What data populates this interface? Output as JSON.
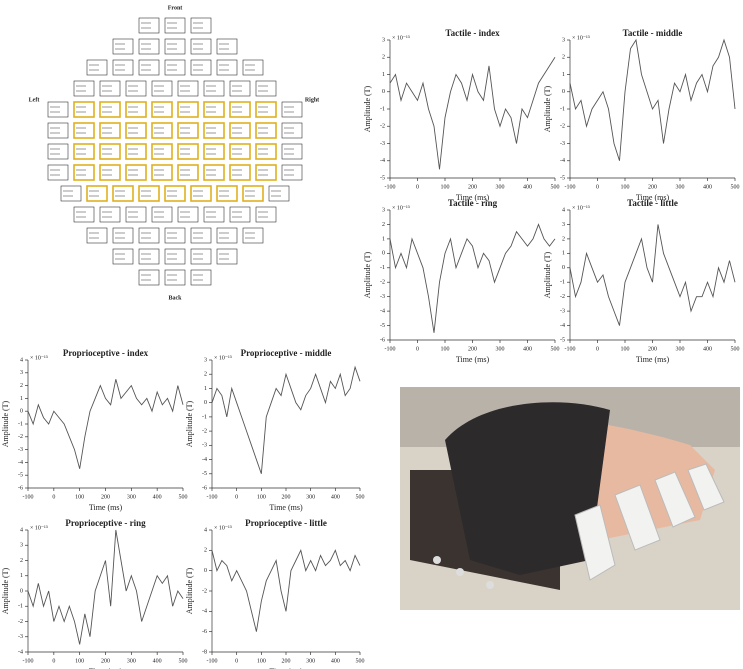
{
  "sensor_map": {
    "front": "Front",
    "left": "Left",
    "right": "Right",
    "back": "Back"
  },
  "chart_data": [
    {
      "type": "line",
      "title": "Tactile - index",
      "x_label": "Time (ms)",
      "y_label": "Amplitude (T)",
      "y_scale_label": "× 10⁻¹³",
      "color": "#555555",
      "x": [
        -100,
        -80,
        -60,
        -40,
        -20,
        0,
        20,
        40,
        60,
        80,
        100,
        120,
        140,
        160,
        180,
        200,
        220,
        240,
        260,
        280,
        300,
        320,
        340,
        360,
        380,
        400,
        420,
        440,
        460,
        480,
        500
      ],
      "values": [
        0.5,
        1,
        -0.5,
        0.5,
        0,
        -0.5,
        0.5,
        -1,
        -2,
        -4.5,
        -1.5,
        0,
        1,
        0.5,
        -0.5,
        1,
        0,
        -0.5,
        1.5,
        -1,
        -2,
        -1,
        -1.5,
        -3,
        -1,
        -1.5,
        -0.5,
        0.5,
        1,
        1.5,
        2
      ],
      "xlim": [
        -100,
        500
      ],
      "xticks": [
        -100,
        0,
        100,
        200,
        300,
        400,
        500
      ],
      "ylim": [
        -5,
        3
      ],
      "yticks": [
        -5,
        -4,
        -3,
        -2,
        -1,
        0,
        1,
        2,
        3
      ]
    },
    {
      "type": "line",
      "title": "Tactile - middle",
      "x_label": "Time (ms)",
      "y_label": "Amplitude (T)",
      "y_scale_label": "× 10⁻¹³",
      "color": "#555555",
      "x": [
        -100,
        -80,
        -60,
        -40,
        -20,
        0,
        20,
        40,
        60,
        80,
        100,
        120,
        140,
        160,
        180,
        200,
        220,
        240,
        260,
        280,
        300,
        320,
        340,
        360,
        380,
        400,
        420,
        440,
        460,
        480,
        500
      ],
      "values": [
        0.5,
        -1,
        -0.5,
        -2,
        -1,
        -0.5,
        0,
        -1,
        -3,
        -4,
        0,
        2.5,
        3,
        1,
        0,
        -1,
        -0.5,
        -3,
        -1,
        0.5,
        0,
        1,
        -0.5,
        0.5,
        1,
        0,
        1.5,
        2,
        3,
        2,
        -1
      ],
      "xlim": [
        -100,
        500
      ],
      "xticks": [
        -100,
        0,
        100,
        200,
        300,
        400,
        500
      ],
      "ylim": [
        -5,
        3
      ],
      "yticks": [
        -5,
        -4,
        -3,
        -2,
        -1,
        0,
        1,
        2,
        3
      ]
    },
    {
      "type": "line",
      "title": "Tactile - ring",
      "x_label": "Time (ms)",
      "y_label": "Amplitude (T)",
      "y_scale_label": "× 10⁻¹³",
      "color": "#555555",
      "x": [
        -100,
        -80,
        -60,
        -40,
        -20,
        0,
        20,
        40,
        60,
        80,
        100,
        120,
        140,
        160,
        180,
        200,
        220,
        240,
        260,
        280,
        300,
        320,
        340,
        360,
        380,
        400,
        420,
        440,
        460,
        480,
        500
      ],
      "values": [
        1,
        -1,
        0,
        -1,
        1,
        0,
        -1,
        -3,
        -5.5,
        -2,
        0,
        1,
        -1,
        0,
        1,
        0.5,
        -1,
        0,
        -0.5,
        -2,
        -1,
        0,
        0.5,
        1.5,
        1,
        0.5,
        1,
        2,
        1,
        0.5,
        1
      ],
      "xlim": [
        -100,
        500
      ],
      "xticks": [
        -100,
        0,
        100,
        200,
        300,
        400,
        500
      ],
      "ylim": [
        -6,
        3
      ],
      "yticks": [
        -6,
        -5,
        -4,
        -3,
        -2,
        -1,
        0,
        1,
        2,
        3
      ]
    },
    {
      "type": "line",
      "title": "Tactile - little",
      "x_label": "Time (ms)",
      "y_label": "Amplitude (T)",
      "y_scale_label": "× 10⁻¹³",
      "color": "#555555",
      "x": [
        -100,
        -80,
        -60,
        -40,
        -20,
        0,
        20,
        40,
        60,
        80,
        100,
        120,
        140,
        160,
        180,
        200,
        220,
        240,
        260,
        280,
        300,
        320,
        340,
        360,
        380,
        400,
        420,
        440,
        460,
        480,
        500
      ],
      "values": [
        0,
        -2,
        -1,
        1,
        0,
        -1,
        -0.5,
        -2,
        -3,
        -4,
        -1,
        0,
        1,
        2,
        0,
        -1,
        3,
        1,
        0,
        -1,
        -2,
        -1,
        -3,
        -2,
        -2,
        -1,
        -2,
        0,
        -1,
        0.5,
        -1
      ],
      "xlim": [
        -100,
        500
      ],
      "xticks": [
        -100,
        0,
        100,
        200,
        300,
        400,
        500
      ],
      "ylim": [
        -5,
        4
      ],
      "yticks": [
        -5,
        -4,
        -3,
        -2,
        -1,
        0,
        1,
        2,
        3,
        4
      ]
    },
    {
      "type": "line",
      "title": "Proprioceptive - index",
      "x_label": "Time (ms)",
      "y_label": "Amplitude (T)",
      "y_scale_label": "× 10⁻¹³",
      "color": "#555555",
      "x": [
        -100,
        -80,
        -60,
        -40,
        -20,
        0,
        20,
        40,
        60,
        80,
        100,
        120,
        140,
        160,
        180,
        200,
        220,
        240,
        260,
        280,
        300,
        320,
        340,
        360,
        380,
        400,
        420,
        440,
        460,
        480,
        500
      ],
      "values": [
        0,
        -1,
        0.5,
        -0.5,
        -1,
        0,
        -0.5,
        -1,
        -2,
        -3,
        -4.5,
        -2,
        0,
        1,
        2,
        1,
        0.5,
        2.5,
        1,
        1.5,
        2,
        1,
        0.5,
        1,
        0,
        1.5,
        0.5,
        1,
        0,
        2,
        0.5
      ],
      "xlim": [
        -100,
        500
      ],
      "xticks": [
        -100,
        0,
        100,
        200,
        300,
        400,
        500
      ],
      "ylim": [
        -6,
        4
      ],
      "yticks": [
        -6,
        -5,
        -4,
        -3,
        -2,
        -1,
        0,
        1,
        2,
        3,
        4
      ]
    },
    {
      "type": "line",
      "title": "Proprioceptive - middle",
      "x_label": "Time (ms)",
      "y_label": "Amplitude (T)",
      "y_scale_label": "× 10⁻¹³",
      "color": "#555555",
      "x": [
        -100,
        -80,
        -60,
        -40,
        -20,
        0,
        20,
        40,
        60,
        80,
        100,
        120,
        140,
        160,
        180,
        200,
        220,
        240,
        260,
        280,
        300,
        320,
        340,
        360,
        380,
        400,
        420,
        440,
        460,
        480,
        500
      ],
      "values": [
        0,
        1,
        0.5,
        -1,
        1,
        0,
        -1,
        -2,
        -3,
        -4,
        -5,
        -1,
        0,
        1,
        0.5,
        2,
        1,
        0,
        -0.5,
        0.5,
        1,
        2,
        1,
        0,
        1.5,
        1,
        2,
        0.5,
        1,
        2.5,
        1.5
      ],
      "xlim": [
        -100,
        500
      ],
      "xticks": [
        -100,
        0,
        100,
        200,
        300,
        400,
        500
      ],
      "ylim": [
        -6,
        3
      ],
      "yticks": [
        -6,
        -5,
        -4,
        -3,
        -2,
        -1,
        0,
        1,
        2,
        3
      ]
    },
    {
      "type": "line",
      "title": "Proprioceptive - ring",
      "x_label": "Time (ms)",
      "y_label": "Amplitude (T)",
      "y_scale_label": "× 10⁻¹³",
      "color": "#555555",
      "x": [
        -100,
        -80,
        -60,
        -40,
        -20,
        0,
        20,
        40,
        60,
        80,
        100,
        120,
        140,
        160,
        180,
        200,
        220,
        240,
        260,
        280,
        300,
        320,
        340,
        360,
        380,
        400,
        420,
        440,
        460,
        480,
        500
      ],
      "values": [
        0,
        -1,
        0.5,
        -1,
        0,
        -2,
        -1,
        -2,
        -1,
        -2,
        -3.5,
        -1.5,
        -3,
        0,
        1,
        2,
        -1,
        4,
        2,
        0,
        1,
        0,
        -2,
        -1,
        0,
        1,
        0.5,
        1,
        -1,
        0,
        -0.5
      ],
      "xlim": [
        -100,
        500
      ],
      "xticks": [
        -100,
        0,
        100,
        200,
        300,
        400,
        500
      ],
      "ylim": [
        -4,
        4
      ],
      "yticks": [
        -4,
        -3,
        -2,
        -1,
        0,
        1,
        2,
        3,
        4
      ]
    },
    {
      "type": "line",
      "title": "Proprioceptive - little",
      "x_label": "Time (ms)",
      "y_label": "Amplitude (T)",
      "y_scale_label": "× 10⁻¹³",
      "color": "#555555",
      "x": [
        -100,
        -80,
        -60,
        -40,
        -20,
        0,
        20,
        40,
        60,
        80,
        100,
        120,
        140,
        160,
        180,
        200,
        220,
        240,
        260,
        280,
        300,
        320,
        340,
        360,
        380,
        400,
        420,
        440,
        460,
        480,
        500
      ],
      "values": [
        2,
        0,
        1,
        0.5,
        -1,
        0,
        -1,
        -2,
        -4,
        -6,
        -3,
        -1,
        0,
        1,
        -2,
        -4,
        0,
        1,
        2,
        0,
        1,
        0,
        1.5,
        0.5,
        1,
        2,
        0.5,
        1,
        0,
        1.5,
        0.5
      ],
      "xlim": [
        -100,
        500
      ],
      "xticks": [
        -100,
        0,
        100,
        200,
        300,
        400,
        500
      ],
      "ylim": [
        -8,
        4
      ],
      "yticks": [
        -8,
        -6,
        -4,
        -2,
        0,
        2,
        4
      ]
    }
  ]
}
